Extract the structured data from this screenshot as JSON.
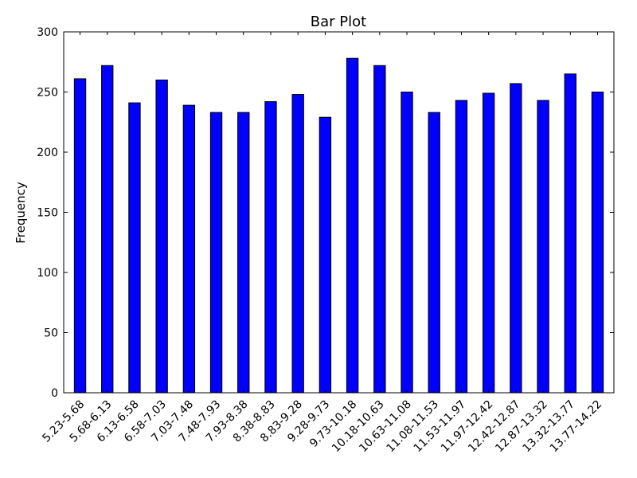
{
  "chart_data": {
    "type": "bar",
    "title": "Bar Plot",
    "xlabel": "",
    "ylabel": "Frequency",
    "ylim": [
      0,
      300
    ],
    "yticks": [
      0,
      50,
      100,
      150,
      200,
      250,
      300
    ],
    "grid": false,
    "categories": [
      "5.23-5.68",
      "5.68-6.13",
      "6.13-6.58",
      "6.58-7.03",
      "7.03-7.48",
      "7.48-7.93",
      "7.93-8.38",
      "8.38-8.83",
      "8.83-9.28",
      "9.28-9.73",
      "9.73-10.18",
      "10.18-10.63",
      "10.63-11.08",
      "11.08-11.53",
      "11.53-11.97",
      "11.97-12.42",
      "12.42-12.87",
      "12.87-13.32",
      "13.32-13.77",
      "13.77-14.22"
    ],
    "values": [
      261,
      272,
      241,
      260,
      239,
      233,
      233,
      242,
      248,
      229,
      278,
      272,
      250,
      233,
      243,
      249,
      257,
      243,
      265,
      250
    ],
    "bar_color": "#0000ff",
    "edge_color": "#000000"
  }
}
